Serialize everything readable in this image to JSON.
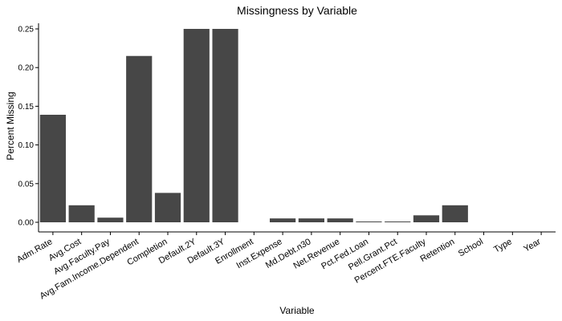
{
  "chart_data": {
    "type": "bar",
    "title": "Missingness by Variable",
    "xlabel": "Variable",
    "ylabel": "Percent Missing",
    "ylim": [
      -0.013,
      0.25
    ],
    "yticks": [
      "0.00",
      "0.05",
      "0.10",
      "0.15",
      "0.20",
      "0.25"
    ],
    "categories": [
      "Adm.Rate",
      "Avg.Cost",
      "Avg.Faculty.Pay",
      "Avg.Fam.Income.Dependent",
      "Completion",
      "Default.2Y",
      "Default.3Y",
      "Enrollment",
      "Inst.Expense",
      "Md.Debt.n30",
      "Net.Revenue",
      "Pct.Fed.Loan",
      "Pell.Grant.Pct",
      "Percent.FTE.Faculty",
      "Retention",
      "School",
      "Type",
      "Year"
    ],
    "values": [
      0.139,
      0.022,
      0.006,
      0.215,
      0.038,
      0.25,
      0.25,
      0,
      0.005,
      0.005,
      0.005,
      0.001,
      0.001,
      0.009,
      0.022,
      0,
      0,
      0
    ],
    "grid": false,
    "bar_color": "#474747",
    "axis_color": "#000000"
  }
}
